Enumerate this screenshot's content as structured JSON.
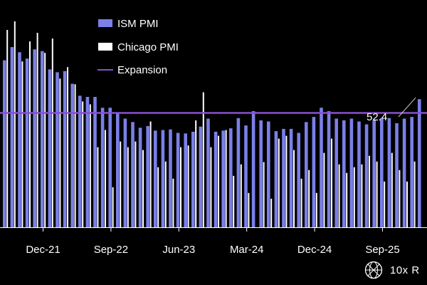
{
  "chart_data": {
    "type": "bar",
    "ylim": [
      30,
      66
    ],
    "threshold": 50,
    "grid": false,
    "legend": {
      "placement": "top-left",
      "items": [
        {
          "label": "ISM PMI",
          "color": "#7b7fe6",
          "kind": "bar"
        },
        {
          "label": "Chicago PMI",
          "color": "#ffffff",
          "kind": "bar"
        },
        {
          "label": "Expansion",
          "color": "#8a4fd1",
          "kind": "line"
        }
      ]
    },
    "x_ticks": [
      {
        "label": "Dec-21",
        "index": 5
      },
      {
        "label": "Sep-22",
        "index": 14
      },
      {
        "label": "Jun-23",
        "index": 23
      },
      {
        "label": "Mar-24",
        "index": 32
      },
      {
        "label": "Dec-24",
        "index": 41
      },
      {
        "label": "Sep-25",
        "index": 50
      }
    ],
    "series": [
      {
        "name": "ISM PMI",
        "color": "#7b7fe6",
        "values": [
          59.2,
          61.5,
          60.6,
          59.5,
          61.1,
          60.8,
          57.6,
          57.1,
          57.3,
          55.1,
          53.0,
          52.8,
          52.8,
          50.9,
          50.9,
          50.0,
          49.0,
          48.4,
          47.4,
          47.7,
          46.9,
          47.0,
          47.1,
          46.5,
          46.4,
          46.7,
          47.6,
          49.0,
          46.7,
          46.9,
          47.3,
          49.1,
          47.8,
          50.3,
          48.7,
          48.5,
          46.8,
          47.2,
          47.2,
          46.5,
          48.4,
          49.3,
          50.9,
          50.3,
          49.0,
          48.7,
          49.0,
          48.5,
          48.0,
          48.7,
          49.1,
          49.1,
          48.2,
          49.0,
          49.3,
          52.4
        ]
      },
      {
        "name": "Chicago PMI",
        "color": "#ffffff",
        "values": [
          64.5,
          66.0,
          59.0,
          62.5,
          64.0,
          60.5,
          63.0,
          56.0,
          58.0,
          55.0,
          52.0,
          51.5,
          44.0,
          47.0,
          37.0,
          45.0,
          44.0,
          45.0,
          43.5,
          48.5,
          40.5,
          41.5,
          38.5,
          44.0,
          44.3,
          48.7,
          53.6,
          44.0,
          46.0,
          47.0,
          39.0,
          41.0,
          36.0,
          30.0,
          41.4,
          35.0,
          45.5,
          46.0,
          43.5,
          38.5,
          40.0,
          36.0,
          43.0,
          45.5,
          41.0,
          39.5,
          40.5,
          41.0,
          42.5,
          41.5,
          38.0,
          43.0,
          40.0,
          38.0,
          41.5
        ]
      }
    ],
    "annotations": [
      {
        "text": "52.4",
        "series": "ISM PMI",
        "index": 55
      }
    ]
  },
  "brand": {
    "text": "10x R",
    "icon": "globe-logo-icon"
  }
}
